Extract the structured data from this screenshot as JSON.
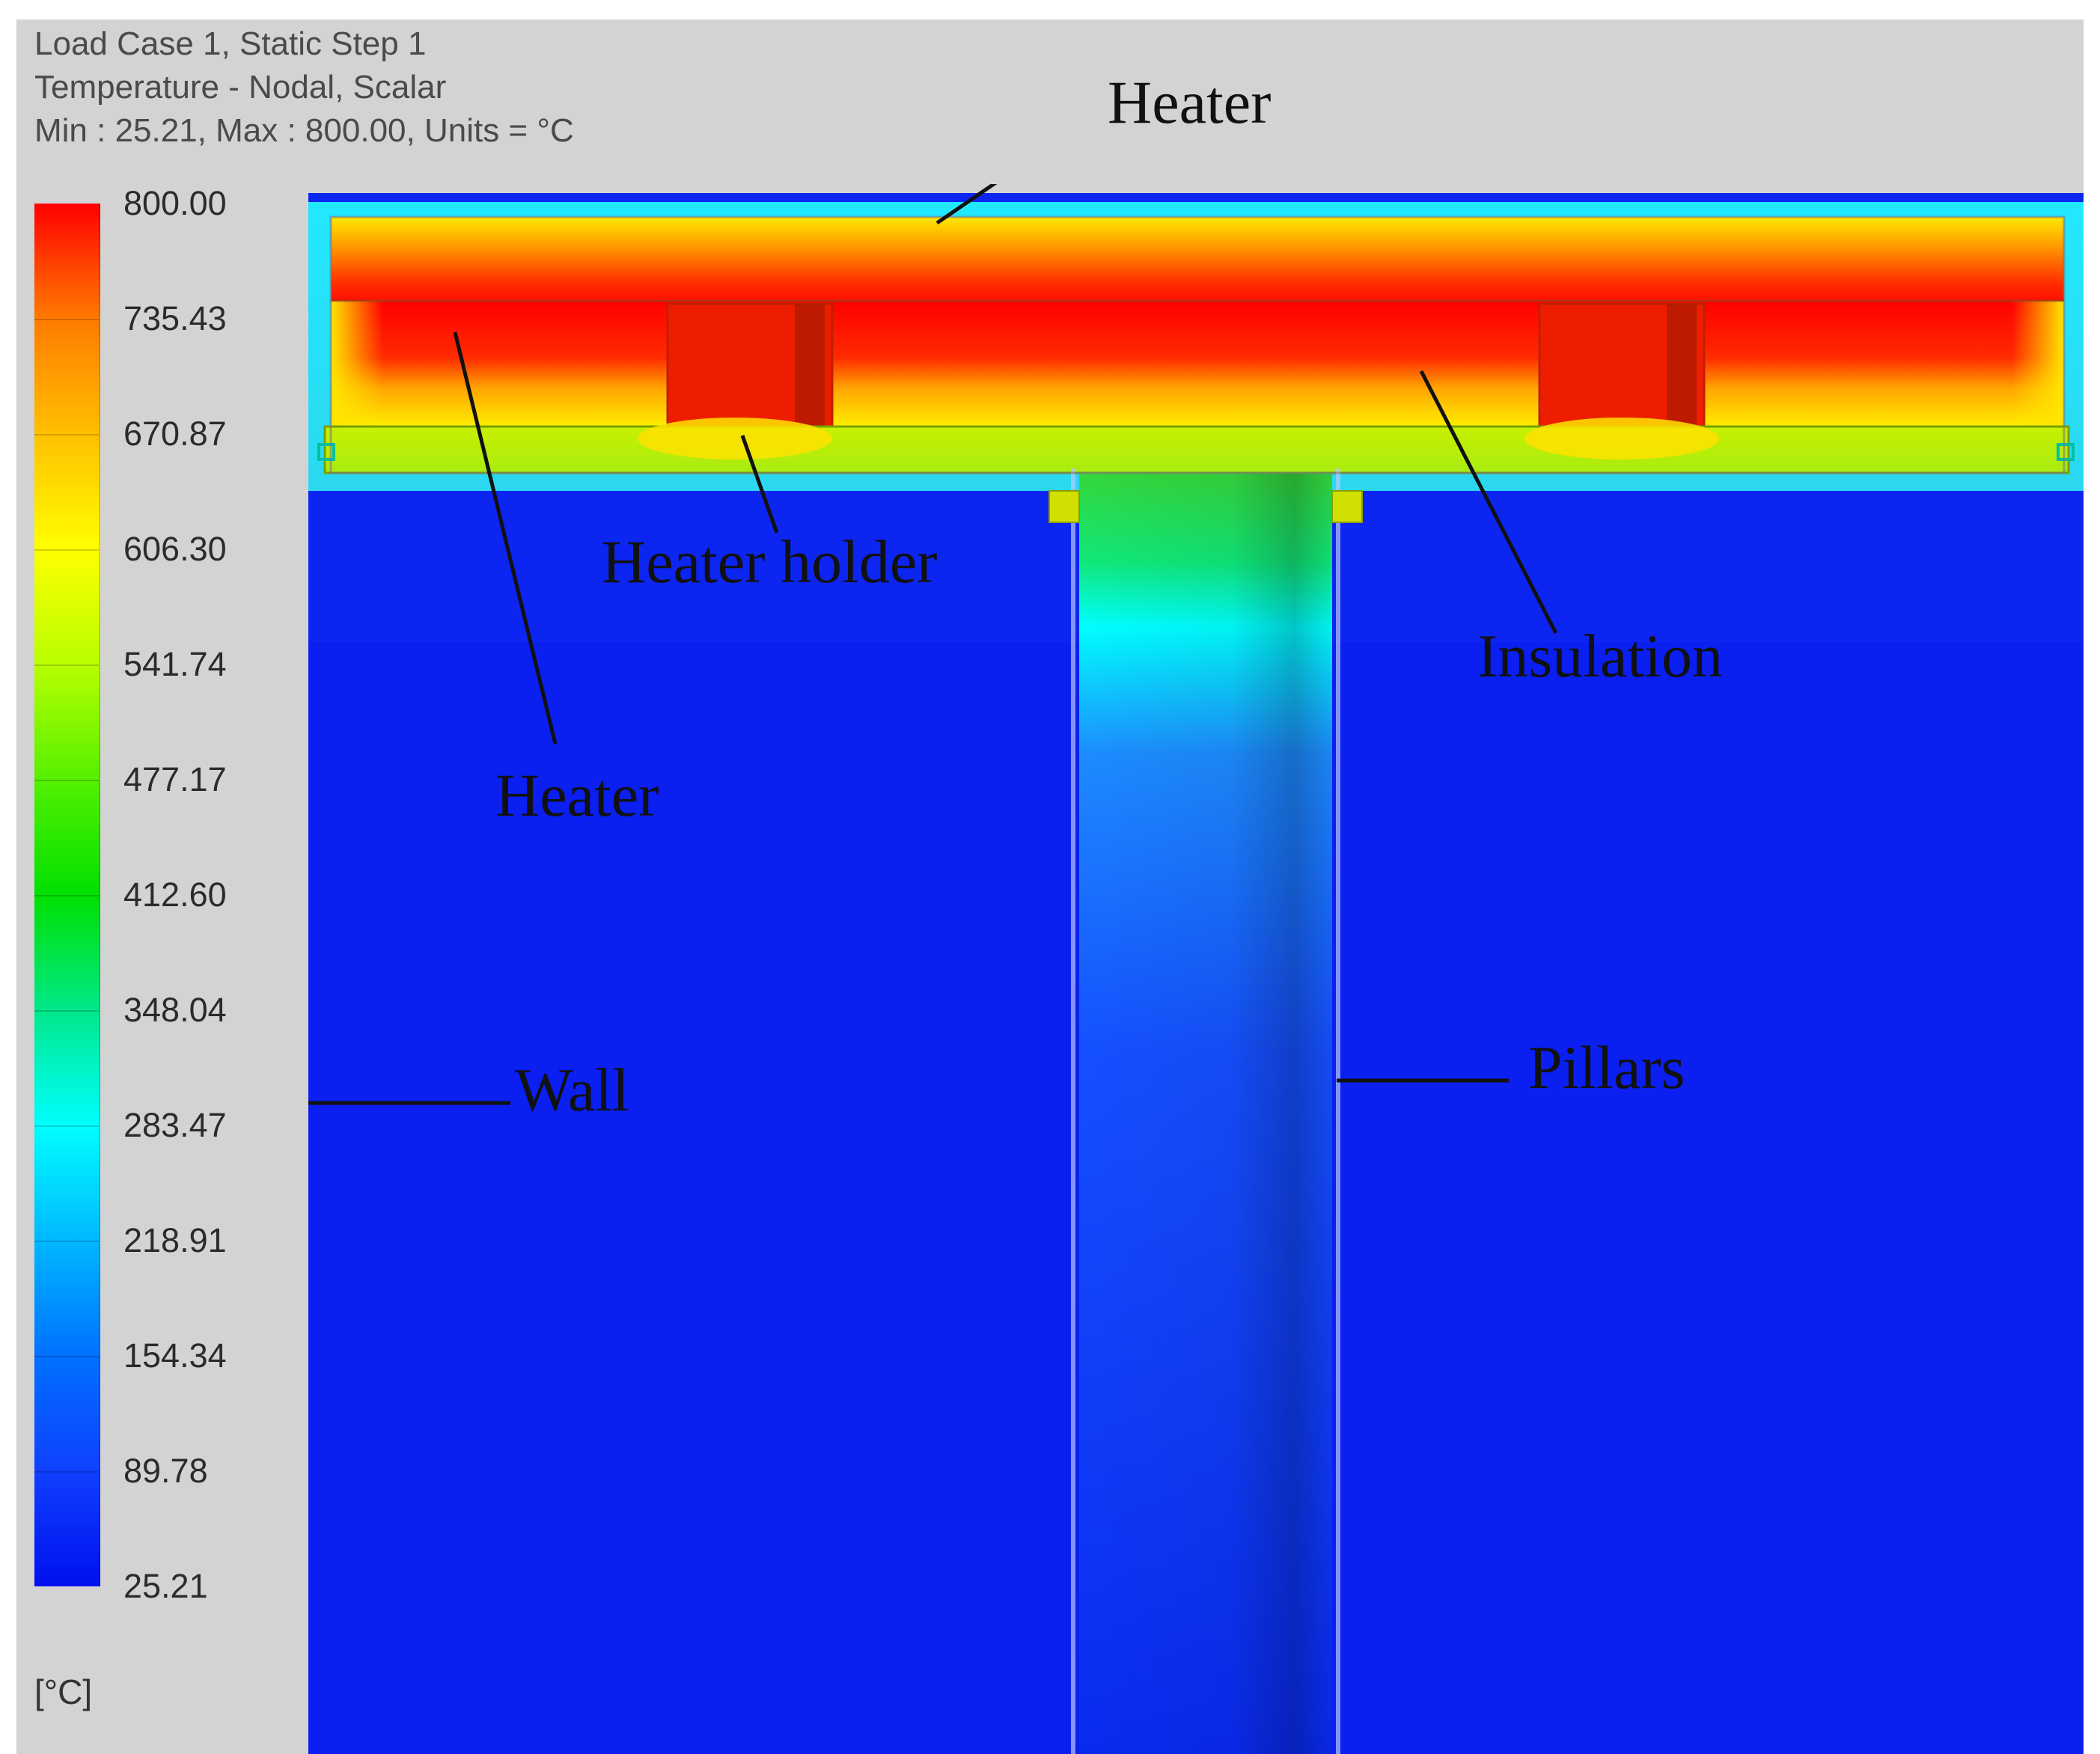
{
  "header": {
    "line1": "Load Case 1, Static Step 1",
    "line2": "Temperature - Nodal, Scalar",
    "line3": "Min : 25.21, Max : 800.00, Units = °C"
  },
  "legend": {
    "units": "[°C]",
    "labels": [
      "800.00",
      "735.43",
      "670.87",
      "606.30",
      "541.74",
      "477.17",
      "412.60",
      "348.04",
      "283.47",
      "218.91",
      "154.34",
      "89.78",
      "25.21"
    ],
    "colors": [
      "#ff0000",
      "#ff7a00",
      "#ffc000",
      "#ffff00",
      "#b8ff00",
      "#55f000",
      "#00e000",
      "#00e88a",
      "#00ffff",
      "#00b8ff",
      "#0070ff",
      "#1040ff",
      "#0010ee"
    ]
  },
  "annotations": {
    "heater_top": "Heater",
    "heater_holder": "Heater holder",
    "insulation": "Insulation",
    "heater_left": "Heater",
    "wall": "Wall",
    "pillars": "Pillars"
  },
  "colors": {
    "background": "#d3d3d3",
    "cold": "#0a1ff0",
    "hot": "#ff0000"
  }
}
